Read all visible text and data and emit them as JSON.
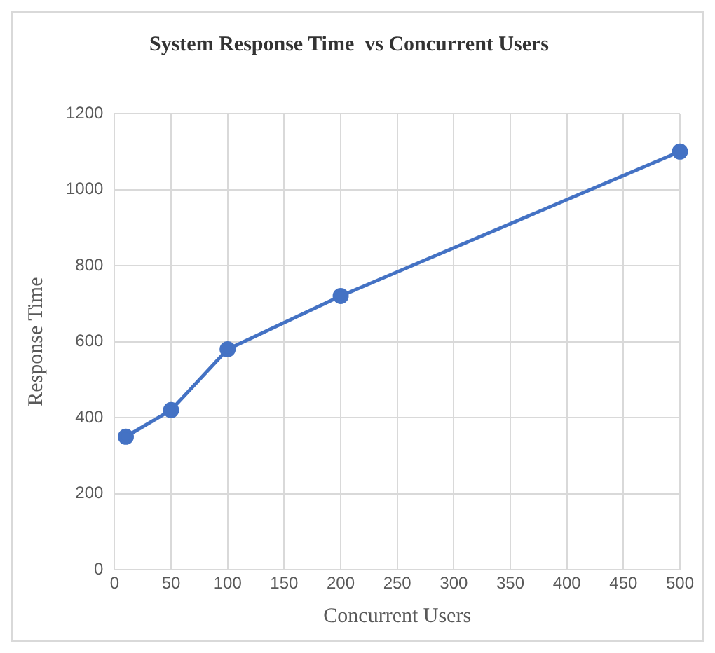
{
  "chart_data": {
    "type": "line",
    "title": "System Response Time  vs Concurrent Users",
    "xlabel": "Concurrent Users",
    "ylabel": "Response Time",
    "x": [
      10,
      50,
      100,
      200,
      500
    ],
    "series": [
      {
        "color": "#4472c4",
        "values": [
          350,
          420,
          580,
          720,
          1100
        ]
      }
    ],
    "xlim": [
      0,
      500
    ],
    "xticks": [
      0,
      50,
      100,
      150,
      200,
      250,
      300,
      350,
      400,
      450,
      500
    ],
    "ylim": [
      0,
      1200
    ],
    "yticks": [
      0,
      200,
      400,
      600,
      800,
      1000,
      1200
    ],
    "grid": true,
    "marker": "circle",
    "line_style": "solid"
  }
}
